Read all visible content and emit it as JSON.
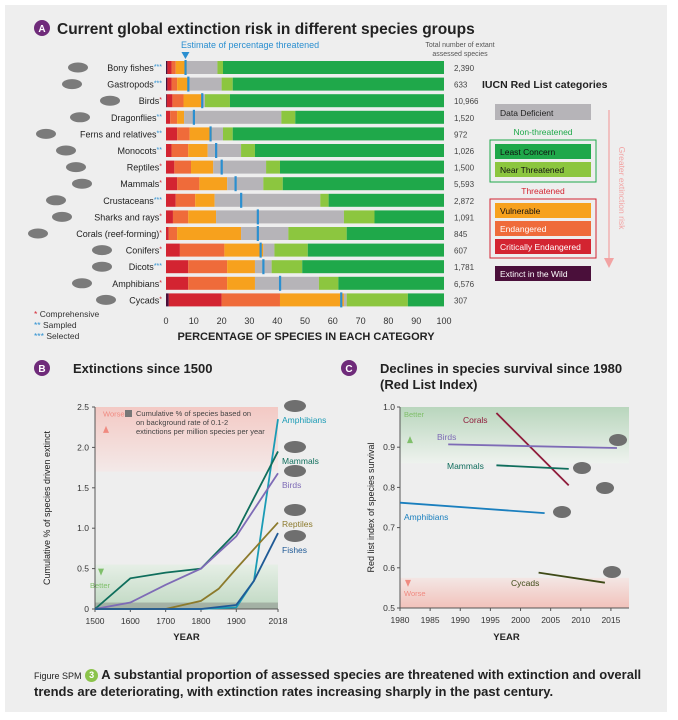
{
  "panelA": {
    "badge": "A",
    "title": "Current global extinction risk in different species groups",
    "estimate_label": "Estimate of percentage threatened",
    "total_header_1": "Total number of extant",
    "total_header_2": "assessed species",
    "xlabel": "PERCENTAGE OF SPECIES IN EACH CATEGORY",
    "xticks": [
      "0",
      "10",
      "20",
      "30",
      "40",
      "50",
      "60",
      "70",
      "80",
      "90",
      "100"
    ],
    "footnotes": [
      {
        "mark": "*",
        "text": "Comprehensive"
      },
      {
        "mark": "**",
        "text": "Sampled"
      },
      {
        "mark": "***",
        "text": "Selected"
      }
    ],
    "legend": {
      "title": "IUCN Red List categories",
      "data_deficient": "Data Deficient",
      "nonthreatened_header": "Non-threatened",
      "least_concern": "Least Concern",
      "near_threatened": "Near Threatened",
      "threatened_header": "Threatened",
      "vulnerable": "Vulnerable",
      "endangered": "Endangered",
      "critically_endangered": "Critically Endangered",
      "extinct_wild": "Extinct in the Wild",
      "risk_label": "Greater extinction risk"
    },
    "colors": {
      "EW": "#4a0f3a",
      "CR": "#d32431",
      "EN": "#ef6b3a",
      "VU": "#f7a11d",
      "DD": "#b6b4b8",
      "NT": "#8cc63f",
      "LC": "#1fa84a",
      "estimate": "#2b8fd0"
    }
  },
  "chart_data": [
    {
      "type": "bar",
      "orientation": "horizontal",
      "stacked": true,
      "title": "Current global extinction risk in different species groups",
      "xlabel": "PERCENTAGE OF SPECIES IN EACH CATEGORY",
      "xlim": [
        0,
        100
      ],
      "segments": [
        "EW",
        "CR",
        "EN",
        "VU",
        "DD",
        "NT",
        "LC"
      ],
      "groups": [
        {
          "label": "Bony fishes",
          "mark": "***",
          "total": "2,390",
          "EW": 0.5,
          "CR": 1.5,
          "EN": 1.5,
          "VU": 4,
          "DD": 11,
          "NT": 2,
          "LC": 79.5,
          "estimate": 7
        },
        {
          "label": "Gastropods",
          "mark": "***",
          "total": "633",
          "EW": 0.5,
          "CR": 1.5,
          "EN": 2,
          "VU": 4,
          "DD": 12,
          "NT": 4,
          "LC": 76,
          "estimate": 8
        },
        {
          "label": "Birds",
          "mark": "*",
          "total": "10,966",
          "EW": 0.3,
          "CR": 2,
          "EN": 4,
          "VU": 7,
          "DD": 0.7,
          "NT": 9,
          "LC": 77,
          "estimate": 13
        },
        {
          "label": "Dragonflies",
          "mark": "**",
          "total": "1,520",
          "EW": 0,
          "CR": 1.5,
          "EN": 2.5,
          "VU": 2.5,
          "DD": 35,
          "NT": 5,
          "LC": 53.5,
          "estimate": 10
        },
        {
          "label": "Ferns and relatives",
          "mark": "**",
          "total": "972",
          "EW": 0,
          "CR": 4,
          "EN": 4.5,
          "VU": 8,
          "DD": 4,
          "NT": 3.5,
          "LC": 76,
          "estimate": 16
        },
        {
          "label": "Monocots",
          "mark": "**",
          "total": "1,026",
          "EW": 0,
          "CR": 2,
          "EN": 6,
          "VU": 7,
          "DD": 12,
          "NT": 5,
          "LC": 68,
          "estimate": 18
        },
        {
          "label": "Reptiles",
          "mark": "*",
          "total": "1,500",
          "EW": 0,
          "CR": 3,
          "EN": 6,
          "VU": 8,
          "DD": 19,
          "NT": 5,
          "LC": 59,
          "estimate": 20
        },
        {
          "label": "Mammals",
          "mark": "*",
          "total": "5,593",
          "EW": 0,
          "CR": 4,
          "EN": 8,
          "VU": 10,
          "DD": 13,
          "NT": 7,
          "LC": 58,
          "estimate": 25
        },
        {
          "label": "Crustaceans",
          "mark": "***",
          "total": "2,872",
          "EW": 0,
          "CR": 3.5,
          "EN": 7,
          "VU": 7,
          "DD": 38,
          "NT": 3,
          "LC": 41.5,
          "estimate": 27
        },
        {
          "label": "Sharks and rays",
          "mark": "*",
          "total": "1,091",
          "EW": 0,
          "CR": 2.5,
          "EN": 5.5,
          "VU": 10,
          "DD": 46,
          "NT": 11,
          "LC": 25,
          "estimate": 33
        },
        {
          "label": "Corals (reef-forming)",
          "mark": "*",
          "total": "845",
          "EW": 0,
          "CR": 1,
          "EN": 3,
          "VU": 23,
          "DD": 17,
          "NT": 21,
          "LC": 35,
          "estimate": 33
        },
        {
          "label": "Conifers",
          "mark": "*",
          "total": "607",
          "EW": 0,
          "CR": 5,
          "EN": 16,
          "VU": 14,
          "DD": 4,
          "NT": 12,
          "LC": 49,
          "estimate": 34
        },
        {
          "label": "Dicots",
          "mark": "***",
          "total": "1,781",
          "EW": 0,
          "CR": 8,
          "EN": 14,
          "VU": 10,
          "DD": 6,
          "NT": 11,
          "LC": 51,
          "estimate": 35
        },
        {
          "label": "Amphibians",
          "mark": "*",
          "total": "6,576",
          "EW": 0,
          "CR": 8,
          "EN": 14,
          "VU": 10,
          "DD": 23,
          "NT": 7,
          "LC": 38,
          "estimate": 41
        },
        {
          "label": "Cycads",
          "mark": "*",
          "total": "307",
          "EW": 1,
          "CR": 19,
          "EN": 21,
          "VU": 23,
          "DD": 1,
          "NT": 22,
          "LC": 13,
          "estimate": 63
        }
      ]
    },
    {
      "type": "line",
      "title": "Extinctions since 1500",
      "ylabel": "Cumulative % of species driven extinct",
      "xlabel": "YEAR",
      "xlim": [
        1500,
        2018
      ],
      "ylim": [
        0,
        2.5
      ],
      "xticks": [
        "1500",
        "1600",
        "1700",
        "1800",
        "1900",
        "2018"
      ],
      "yticks": [
        "0",
        "0.5",
        "1.0",
        "1.5",
        "2.0",
        "2.5"
      ],
      "zone_worse": "Worse",
      "zone_better": "Better",
      "background_note": "Cumulative % of species based on on background rate of 0.1-2 extinctions per million species per year",
      "series": [
        {
          "name": "Amphibians",
          "color": "#1a9bb5",
          "x": [
            1500,
            1800,
            1900,
            1950,
            2018
          ],
          "y": [
            0,
            0,
            0.02,
            0.35,
            2.35
          ]
        },
        {
          "name": "Mammals",
          "color": "#0f6e5c",
          "x": [
            1500,
            1600,
            1700,
            1800,
            1900,
            2018
          ],
          "y": [
            0,
            0.38,
            0.45,
            0.5,
            0.95,
            1.95
          ]
        },
        {
          "name": "Birds",
          "color": "#7e6bb6",
          "x": [
            1500,
            1600,
            1700,
            1800,
            1900,
            2018
          ],
          "y": [
            0,
            0.08,
            0.3,
            0.5,
            0.9,
            1.68
          ]
        },
        {
          "name": "Reptiles",
          "color": "#8c7a2c",
          "x": [
            1500,
            1700,
            1800,
            1850,
            1900,
            2018
          ],
          "y": [
            0,
            0,
            0.1,
            0.25,
            0.5,
            1.07
          ]
        },
        {
          "name": "Fishes",
          "color": "#1f5a96",
          "x": [
            1500,
            1800,
            1900,
            1950,
            2018
          ],
          "y": [
            0,
            0,
            0.05,
            0.35,
            0.94
          ]
        }
      ]
    },
    {
      "type": "line",
      "title": "Declines in species survival since 1980 (Red List Index)",
      "ylabel": "Red list index of species survival",
      "xlabel": "YEAR",
      "xlim": [
        1980,
        2018
      ],
      "ylim": [
        0.5,
        1.0
      ],
      "xticks": [
        "1980",
        "1985",
        "1990",
        "1995",
        "2000",
        "2005",
        "2010",
        "2015"
      ],
      "yticks": [
        "0.5",
        "0.6",
        "0.7",
        "0.8",
        "0.9",
        "1.0"
      ],
      "zone_better": "Better",
      "zone_worse": "Worse",
      "series": [
        {
          "name": "Corals",
          "color": "#8f1b3a",
          "x": [
            1996,
            2008
          ],
          "y": [
            0.985,
            0.805
          ]
        },
        {
          "name": "Birds",
          "color": "#7e6bb6",
          "x": [
            1988,
            2016
          ],
          "y": [
            0.907,
            0.898
          ]
        },
        {
          "name": "Mammals",
          "color": "#0f6e5c",
          "x": [
            1996,
            2008
          ],
          "y": [
            0.855,
            0.846
          ]
        },
        {
          "name": "Amphibians",
          "color": "#1a7fbe",
          "x": [
            1980,
            2004
          ],
          "y": [
            0.762,
            0.736
          ]
        },
        {
          "name": "Cycads",
          "color": "#3f4a17",
          "x": [
            2003,
            2014
          ],
          "y": [
            0.588,
            0.563
          ]
        }
      ]
    }
  ],
  "panelB": {
    "badge": "B",
    "title": "Extinctions since 1500"
  },
  "panelC": {
    "badge": "C",
    "title_1": "Declines in species survival since 1980",
    "title_2": "(Red List Index)"
  },
  "caption": {
    "label": "Figure SPM",
    "number": "3",
    "text": "A substantial proportion of assessed species are threatened with extinction and overall trends are deteriorating, with extinction rates increasing sharply in the past century."
  }
}
